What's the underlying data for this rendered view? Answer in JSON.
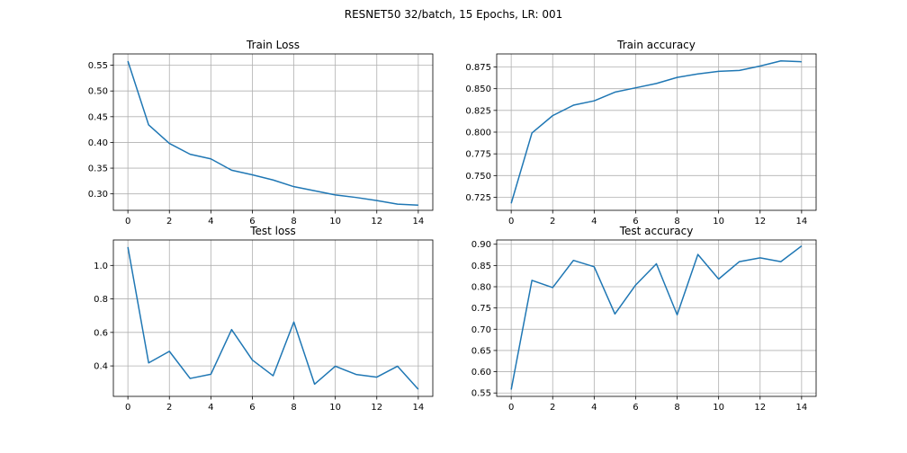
{
  "suptitle": "RESNET50 32/batch, 15 Epochs, LR: 001",
  "line_color": "#1f77b4",
  "chart_data": [
    {
      "type": "line",
      "title": "Train Loss",
      "xlabel": "",
      "ylabel": "",
      "grid": true,
      "x": [
        0,
        1,
        2,
        3,
        4,
        5,
        6,
        7,
        8,
        9,
        10,
        11,
        12,
        13,
        14
      ],
      "xlim": [
        -0.7,
        14.7
      ],
      "ylim": [
        0.268,
        0.572
      ],
      "xticks": [
        0,
        2,
        4,
        6,
        8,
        10,
        12,
        14
      ],
      "yticks": [
        0.3,
        0.35,
        0.4,
        0.45,
        0.5,
        0.55
      ],
      "ytick_labels": [
        "0.30",
        "0.35",
        "0.40",
        "0.45",
        "0.50",
        "0.55"
      ],
      "series": [
        {
          "values": [
            0.558,
            0.434,
            0.398,
            0.377,
            0.368,
            0.346,
            0.337,
            0.327,
            0.314,
            0.306,
            0.298,
            0.293,
            0.287,
            0.28,
            0.278
          ]
        }
      ]
    },
    {
      "type": "line",
      "title": "Train accuracy",
      "xlabel": "",
      "ylabel": "",
      "grid": true,
      "x": [
        0,
        1,
        2,
        3,
        4,
        5,
        6,
        7,
        8,
        9,
        10,
        11,
        12,
        13,
        14
      ],
      "xlim": [
        -0.7,
        14.7
      ],
      "ylim": [
        0.71,
        0.89
      ],
      "xticks": [
        0,
        2,
        4,
        6,
        8,
        10,
        12,
        14
      ],
      "yticks": [
        0.725,
        0.75,
        0.775,
        0.8,
        0.825,
        0.85,
        0.875
      ],
      "ytick_labels": [
        "0.725",
        "0.750",
        "0.775",
        "0.800",
        "0.825",
        "0.850",
        "0.875"
      ],
      "series": [
        {
          "values": [
            0.718,
            0.799,
            0.819,
            0.831,
            0.836,
            0.846,
            0.851,
            0.856,
            0.863,
            0.867,
            0.87,
            0.871,
            0.876,
            0.882,
            0.881
          ]
        }
      ]
    },
    {
      "type": "line",
      "title": "Test loss",
      "xlabel": "",
      "ylabel": "",
      "grid": true,
      "x": [
        0,
        1,
        2,
        3,
        4,
        5,
        6,
        7,
        8,
        9,
        10,
        11,
        12,
        13,
        14
      ],
      "xlim": [
        -0.7,
        14.7
      ],
      "ylim": [
        0.218,
        1.152
      ],
      "xticks": [
        0,
        2,
        4,
        6,
        8,
        10,
        12,
        14
      ],
      "yticks": [
        0.4,
        0.6,
        0.8,
        1.0
      ],
      "ytick_labels": [
        "0.4",
        "0.6",
        "0.8",
        "1.0"
      ],
      "series": [
        {
          "values": [
            1.11,
            0.418,
            0.487,
            0.325,
            0.35,
            0.617,
            0.435,
            0.341,
            0.662,
            0.291,
            0.398,
            0.349,
            0.333,
            0.398,
            0.26
          ]
        }
      ]
    },
    {
      "type": "line",
      "title": "Test accuracy",
      "xlabel": "",
      "ylabel": "",
      "grid": true,
      "x": [
        0,
        1,
        2,
        3,
        4,
        5,
        6,
        7,
        8,
        9,
        10,
        11,
        12,
        13,
        14
      ],
      "xlim": [
        -0.7,
        14.7
      ],
      "ylim": [
        0.542,
        0.91
      ],
      "xticks": [
        0,
        2,
        4,
        6,
        8,
        10,
        12,
        14
      ],
      "yticks": [
        0.55,
        0.6,
        0.65,
        0.7,
        0.75,
        0.8,
        0.85,
        0.9
      ],
      "ytick_labels": [
        "0.55",
        "0.60",
        "0.65",
        "0.70",
        "0.75",
        "0.80",
        "0.85",
        "0.90"
      ],
      "series": [
        {
          "values": [
            0.558,
            0.815,
            0.798,
            0.862,
            0.847,
            0.736,
            0.804,
            0.854,
            0.734,
            0.876,
            0.818,
            0.859,
            0.868,
            0.859,
            0.896
          ]
        }
      ]
    }
  ]
}
